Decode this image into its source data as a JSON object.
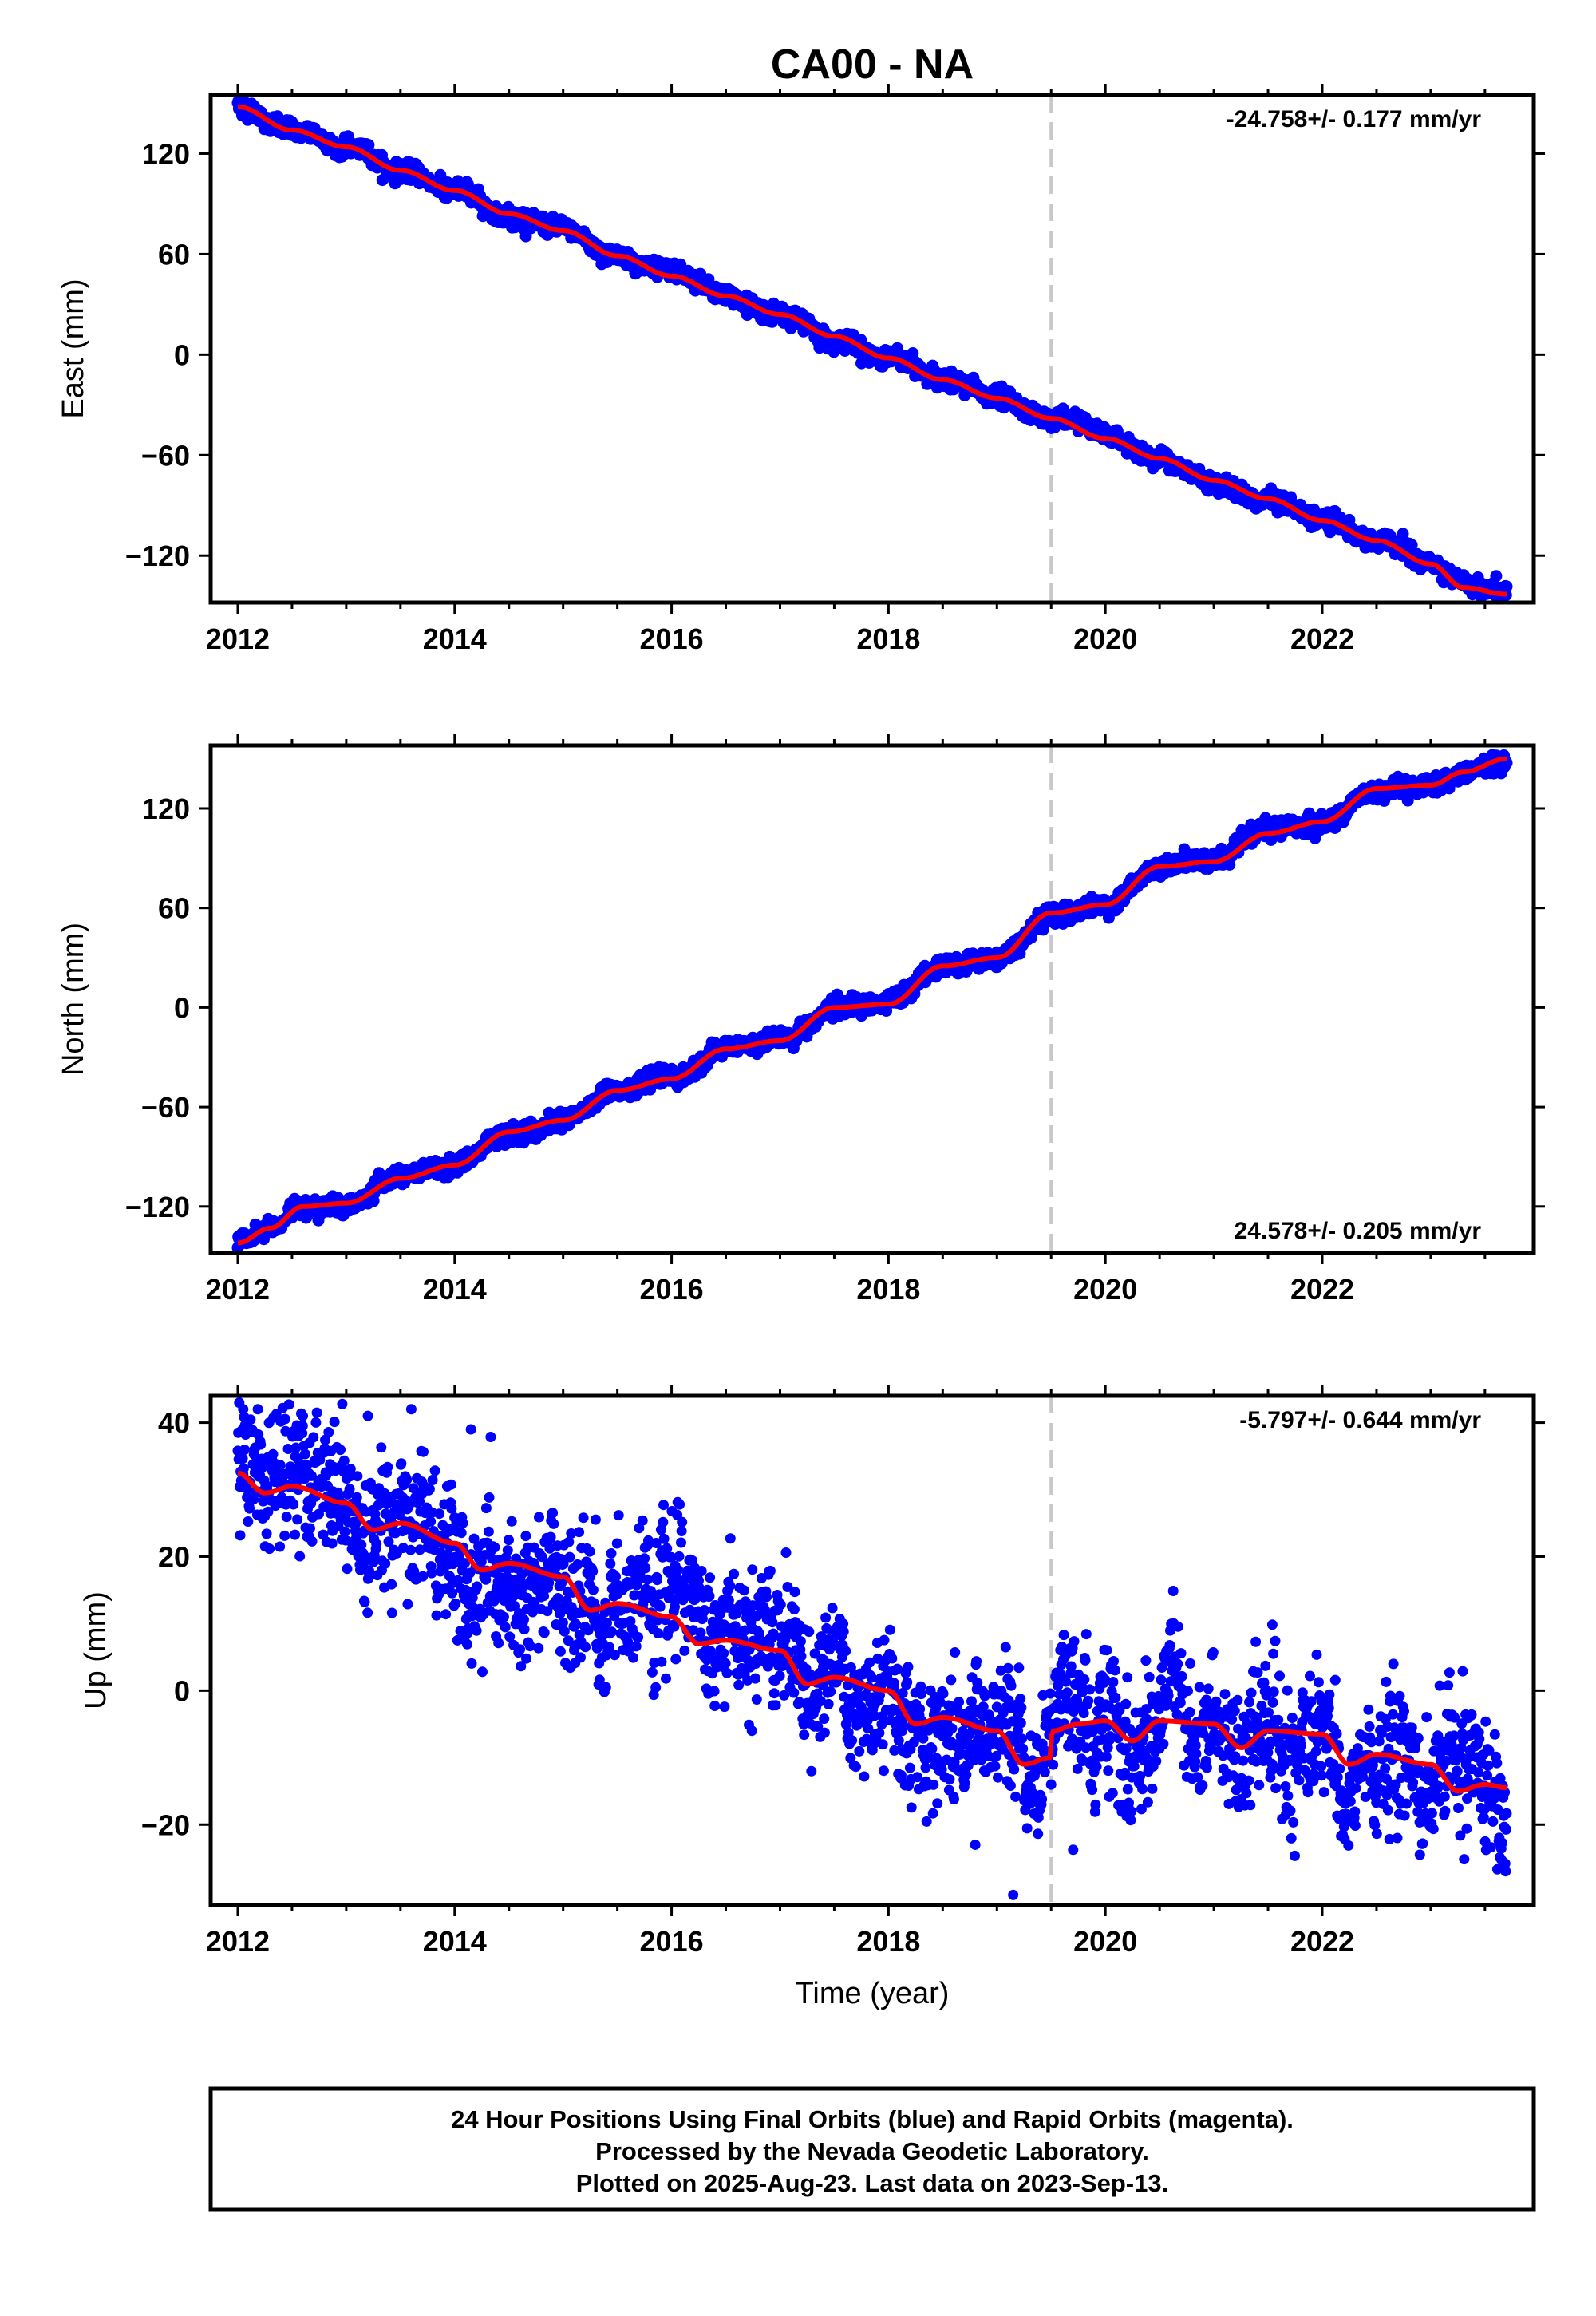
{
  "figure": {
    "title": "CA00 - NA",
    "footer": {
      "line1": "24 Hour Positions Using Final Orbits (blue) and Rapid Orbits (magenta).",
      "line2": "Processed by the Nevada Geodetic Laboratory.",
      "line3": "Plotted on 2025-Aug-23. Last data on 2023-Sep-13."
    },
    "colors": {
      "data_points": "#0000ff",
      "model_line": "#ff0000",
      "event_line": "#c8c8c8",
      "frame": "#000000"
    }
  },
  "chart_data": [
    {
      "type": "scatter",
      "panel": "east",
      "xlabel": "",
      "ylabel": "East (mm)",
      "xlim": [
        2011.75,
        2023.95
      ],
      "ylim": [
        -148,
        155
      ],
      "xticks": [
        2012,
        2014,
        2016,
        2018,
        2020,
        2022
      ],
      "xtick_labels": [
        "2012",
        "2014",
        "2016",
        "2018",
        "2020",
        "2022"
      ],
      "yticks": [
        -120,
        -60,
        0,
        60,
        120
      ],
      "ytick_labels": [
        "−120",
        "−60",
        "0",
        "60",
        "120"
      ],
      "rate_label": "-24.758+/- 0.177 mm/yr",
      "rate_label_position": "top-right",
      "event_line_x": 2019.5,
      "model_knots": {
        "x": [
          2012.0,
          2012.5,
          2013.0,
          2013.5,
          2014.0,
          2014.5,
          2015.0,
          2015.5,
          2016.0,
          2016.5,
          2017.0,
          2017.5,
          2018.0,
          2018.5,
          2019.0,
          2019.5,
          2020.0,
          2020.5,
          2021.0,
          2021.5,
          2022.0,
          2022.5,
          2023.0,
          2023.3,
          2023.7
        ],
        "y": [
          148,
          134,
          124,
          110,
          98,
          84,
          74,
          59,
          47,
          35,
          24,
          11,
          -2,
          -15,
          -26,
          -38,
          -50,
          -62,
          -75,
          -86,
          -99,
          -111,
          -125,
          -139,
          -143
        ]
      },
      "scatter_noise_mm": 2.5
    },
    {
      "type": "scatter",
      "panel": "north",
      "xlabel": "",
      "ylabel": "North (mm)",
      "xlim": [
        2011.75,
        2023.95
      ],
      "ylim": [
        -148,
        158
      ],
      "xticks": [
        2012,
        2014,
        2016,
        2018,
        2020,
        2022
      ],
      "xtick_labels": [
        "2012",
        "2014",
        "2016",
        "2018",
        "2020",
        "2022"
      ],
      "yticks": [
        -120,
        -60,
        0,
        60,
        120
      ],
      "ytick_labels": [
        "−120",
        "−60",
        "0",
        "60",
        "120"
      ],
      "rate_label": "24.578+/- 0.205 mm/yr",
      "rate_label_position": "bottom-right",
      "event_line_x": 2019.5,
      "model_knots": {
        "x": [
          2012.0,
          2012.3,
          2012.6,
          2013.0,
          2013.5,
          2014.0,
          2014.5,
          2015.0,
          2015.5,
          2016.0,
          2016.5,
          2017.0,
          2017.5,
          2018.0,
          2018.5,
          2019.0,
          2019.5,
          2020.0,
          2020.5,
          2021.0,
          2021.5,
          2022.0,
          2022.5,
          2023.0,
          2023.3,
          2023.7
        ],
        "y": [
          -142,
          -133,
          -120,
          -118,
          -103,
          -95,
          -75,
          -68,
          -50,
          -43,
          -25,
          -20,
          0,
          2,
          25,
          30,
          57,
          62,
          85,
          88,
          105,
          112,
          132,
          134,
          142,
          150
        ]
      },
      "scatter_noise_mm": 2.5
    },
    {
      "type": "scatter",
      "panel": "up",
      "xlabel": "Time (year)",
      "ylabel": "Up (mm)",
      "xlim": [
        2011.75,
        2023.95
      ],
      "ylim": [
        -32,
        44
      ],
      "xticks": [
        2012,
        2014,
        2016,
        2018,
        2020,
        2022
      ],
      "xtick_labels": [
        "2012",
        "2014",
        "2016",
        "2018",
        "2020",
        "2022"
      ],
      "yticks": [
        -20,
        0,
        20,
        40
      ],
      "ytick_labels": [
        "−20",
        "0",
        "20",
        "40"
      ],
      "rate_label": "-5.797+/- 0.644 mm/yr",
      "rate_label_position": "top-right",
      "event_line_x": 2019.5,
      "model_knots": {
        "x": [
          2012.0,
          2012.25,
          2012.5,
          2013.0,
          2013.25,
          2013.5,
          2014.0,
          2014.25,
          2014.5,
          2015.0,
          2015.25,
          2015.5,
          2016.0,
          2016.25,
          2016.5,
          2017.0,
          2017.25,
          2017.5,
          2018.0,
          2018.25,
          2018.5,
          2019.0,
          2019.25,
          2019.49,
          2019.51,
          2019.75,
          2020.0,
          2020.25,
          2020.5,
          2021.0,
          2021.25,
          2021.5,
          2022.0,
          2022.25,
          2022.5,
          2023.0,
          2023.25,
          2023.5,
          2023.7
        ],
        "y": [
          32.5,
          29.5,
          30.5,
          28,
          24,
          25,
          22,
          18,
          19,
          17,
          12,
          13,
          11,
          7,
          7.5,
          6,
          1,
          2,
          0,
          -5,
          -4,
          -6,
          -11,
          -10,
          -6,
          -5,
          -4.5,
          -7.5,
          -4.5,
          -5,
          -8.5,
          -6,
          -6.5,
          -11,
          -9.5,
          -11,
          -15,
          -14,
          -14.5
        ]
      },
      "scatter_noise_mm": 4.5,
      "outliers": {
        "x": [
          2012.05,
          2012.6,
          2013.2,
          2013.6,
          2014.15,
          2019.15,
          2022.9,
          2018.8
        ],
        "y": [
          42,
          41,
          41,
          42,
          39,
          -30.5,
          -24.5,
          -23
        ]
      }
    }
  ]
}
